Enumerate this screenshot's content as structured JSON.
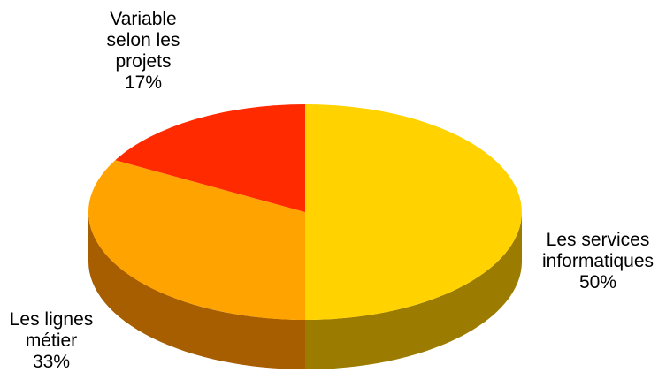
{
  "chart_data": {
    "type": "pie",
    "style": "3d",
    "slices": [
      {
        "label_lines": [
          "Les services",
          "informatiques"
        ],
        "percent_label": "50%",
        "value": 50,
        "color": "#FFD200",
        "side_color": "#9C7C00"
      },
      {
        "label_lines": [
          "Les lignes",
          "métier"
        ],
        "percent_label": "33%",
        "value": 33,
        "color": "#FFA300",
        "side_color": "#A65E00"
      },
      {
        "label_lines": [
          "Variable",
          "selon les",
          "projets"
        ],
        "percent_label": "17%",
        "value": 17,
        "color": "#FF2A00",
        "side_color": "#A61B00"
      }
    ]
  }
}
